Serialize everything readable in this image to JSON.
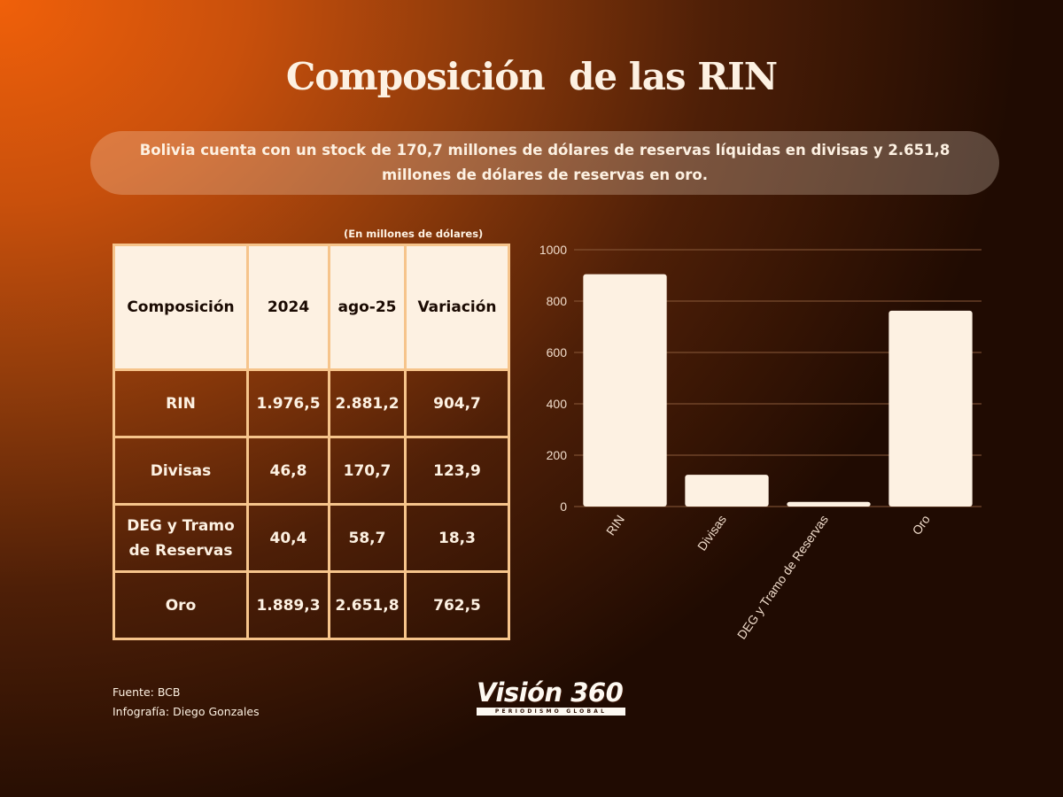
{
  "header": {
    "title": "Composición  de las RIN",
    "subtitle": "Bolivia cuenta con un stock de 170,7 millones de dólares de reservas líquidas en divisas y 2.651,8 millones de dólares de reservas en oro."
  },
  "table": {
    "unit_note": "(En millones de dólares)",
    "headers": [
      "Composición",
      "2024",
      "ago-25",
      "Variación"
    ],
    "rows": [
      [
        "RIN",
        "1.976,5",
        "2.881,2",
        "904,7"
      ],
      [
        "Divisas",
        "46,8",
        "170,7",
        "123,9"
      ],
      [
        "DEG y Tramo de Reservas",
        "40,4",
        "58,7",
        "18,3"
      ],
      [
        "Oro",
        "1.889,3",
        "2.651,8",
        "762,5"
      ]
    ]
  },
  "chart_data": {
    "type": "bar",
    "categories": [
      "RIN",
      "Divisas",
      "DEG y Tramo de Reservas",
      "Oro"
    ],
    "values": [
      904.7,
      123.9,
      18.3,
      762.5
    ],
    "ylim": [
      0,
      1000
    ],
    "yticks": [
      "0",
      "200",
      "400",
      "600",
      "800",
      "1000"
    ],
    "grid": true,
    "colors": {
      "bar": "#fdf1e2",
      "grid": "#8a5a3a",
      "text": "#f0dccb"
    }
  },
  "footer": {
    "source": "Fuente:  BCB",
    "credit": "Infografía: Diego Gonzales",
    "logo_main": "Visión 360",
    "logo_tag": "PERIODISMO GLOBAL"
  }
}
